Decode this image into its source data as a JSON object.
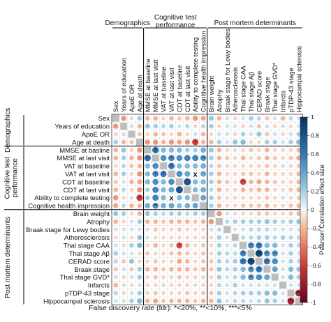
{
  "chart_data": {
    "type": "heatmap",
    "variables": [
      "Sex",
      "Years of education",
      "ApoE OR",
      "Age at death",
      "MMSE at basline",
      "MMSE at last visit",
      "VAT at baseline",
      "VAT at last visit",
      "CDT at baseline",
      "CDT at last visit",
      "Ability to complete testing",
      "Cognitive health impression",
      "Brain weight",
      "Atrophy",
      "Braak stage for Lewy bodies",
      "Atherosclerosis",
      "Thal stage CAA",
      "Thal stage Aβ",
      "CERAD score",
      "Braak stage",
      "Thal stage GVD*",
      "Infarcts",
      "pTDP-43 stage",
      "Hippocampal sclerosis"
    ],
    "column_labels": [
      "Sex",
      "Years of education",
      "ApoE OR",
      "Age at death",
      "MMSE at baseline",
      "MMSE at last visit",
      "VAT at baseline",
      "VAT at last visit",
      "CDT at baseline",
      "CDT at last visit",
      "Ability to complete testing",
      "Cognitive health impression",
      "Brain weight",
      "Atrophy",
      "Braak stage for Lewy bodies",
      "Atherosclerosis",
      "Thal stage CAA",
      "Thal stage Aβ",
      "CERAD score",
      "Braak stage",
      "Thal stage GVD*",
      "Infarcts",
      "pTDP-43 stage",
      "Hippocampal sclerosis"
    ],
    "groups": [
      {
        "name": "Demographics",
        "col_header": "Demographics",
        "start": 0,
        "end": 3
      },
      {
        "name": "Cognitive test performance",
        "col_header_lines": [
          "Cognitive test",
          "performance"
        ],
        "row_header_lines": [
          "Cognitive test",
          "performance"
        ],
        "start": 4,
        "end": 11
      },
      {
        "name": "Post mortem determinants",
        "col_header": "Post mortem determinants",
        "start": 12,
        "end": 23
      }
    ],
    "cells": [
      [
        0,
        1,
        -0.3
      ],
      [
        0,
        2,
        -0.1
      ],
      [
        0,
        3,
        0.2
      ],
      [
        0,
        4,
        -0.2
      ],
      [
        0,
        5,
        -0.2
      ],
      [
        0,
        6,
        -0.1
      ],
      [
        0,
        7,
        -0.2
      ],
      [
        0,
        8,
        -0.15
      ],
      [
        0,
        9,
        -0.2
      ],
      [
        0,
        10,
        -0.3
      ],
      [
        0,
        11,
        -0.25
      ],
      [
        0,
        12,
        0.25
      ],
      [
        0,
        13,
        -0.2
      ],
      [
        0,
        14,
        0.1
      ],
      [
        0,
        15,
        -0.1
      ],
      [
        0,
        16,
        0.1
      ],
      [
        0,
        17,
        0.2
      ],
      [
        0,
        18,
        0.15
      ],
      [
        0,
        19,
        -0.15
      ],
      [
        0,
        20,
        0.1
      ],
      [
        0,
        21,
        -0.2
      ],
      [
        0,
        22,
        0.15
      ],
      [
        0,
        23,
        0.1
      ],
      [
        1,
        2,
        0.1
      ],
      [
        1,
        3,
        -0.2
      ],
      [
        1,
        4,
        0.25
      ],
      [
        1,
        5,
        0.2
      ],
      [
        1,
        6,
        0.15
      ],
      [
        1,
        7,
        0.2
      ],
      [
        1,
        8,
        0.1
      ],
      [
        1,
        9,
        0.15
      ],
      [
        1,
        10,
        -0.1
      ],
      [
        1,
        11,
        0.15
      ],
      [
        1,
        12,
        0.2
      ],
      [
        1,
        13,
        -0.1
      ],
      [
        1,
        14,
        0.1
      ],
      [
        1,
        15,
        0.1
      ],
      [
        1,
        16,
        -0.1
      ],
      [
        1,
        17,
        0.1
      ],
      [
        1,
        18,
        -0.15
      ],
      [
        1,
        19,
        0.1
      ],
      [
        1,
        20,
        -0.1
      ],
      [
        1,
        21,
        0.1
      ],
      [
        1,
        22,
        -0.1
      ],
      [
        1,
        23,
        0.1
      ],
      [
        2,
        3,
        -0.15
      ],
      [
        2,
        4,
        -0.1
      ],
      [
        2,
        5,
        -0.2
      ],
      [
        2,
        6,
        -0.15
      ],
      [
        2,
        7,
        -0.1
      ],
      [
        2,
        8,
        -0.2
      ],
      [
        2,
        9,
        -0.1
      ],
      [
        2,
        10,
        0.1
      ],
      [
        2,
        11,
        -0.2
      ],
      [
        2,
        12,
        -0.1
      ],
      [
        2,
        13,
        0.1
      ],
      [
        2,
        14,
        0.1
      ],
      [
        2,
        15,
        -0.1
      ],
      [
        2,
        16,
        0.2
      ],
      [
        2,
        17,
        0.1
      ],
      [
        2,
        18,
        0.25
      ],
      [
        2,
        19,
        -0.15
      ],
      [
        2,
        20,
        0.1
      ],
      [
        2,
        21,
        -0.1
      ],
      [
        2,
        22,
        0.1
      ],
      [
        2,
        23,
        0.2
      ],
      [
        3,
        4,
        -0.3
      ],
      [
        3,
        5,
        -0.3
      ],
      [
        3,
        6,
        -0.2
      ],
      [
        3,
        7,
        -0.3
      ],
      [
        3,
        8,
        -0.25
      ],
      [
        3,
        9,
        -0.3
      ],
      [
        3,
        10,
        -0.6,
        "*"
      ],
      [
        3,
        11,
        -0.2
      ],
      [
        3,
        12,
        -0.2
      ],
      [
        3,
        13,
        0.2
      ],
      [
        3,
        14,
        0.1
      ],
      [
        3,
        15,
        0.25
      ],
      [
        3,
        16,
        0.3
      ],
      [
        3,
        17,
        -0.1
      ],
      [
        3,
        18,
        -0.1
      ],
      [
        3,
        19,
        0.2
      ],
      [
        3,
        20,
        0.2
      ],
      [
        3,
        21,
        0.1
      ],
      [
        3,
        22,
        0.2
      ],
      [
        3,
        23,
        0.3
      ],
      [
        4,
        5,
        0.65,
        "*"
      ],
      [
        4,
        6,
        0.3
      ],
      [
        4,
        7,
        0.3
      ],
      [
        4,
        8,
        0.3
      ],
      [
        4,
        9,
        0.2
      ],
      [
        4,
        10,
        0.2
      ],
      [
        4,
        11,
        0.35
      ],
      [
        4,
        12,
        0.25
      ],
      [
        4,
        13,
        -0.2
      ],
      [
        4,
        14,
        -0.1
      ],
      [
        4,
        15,
        0.1
      ],
      [
        4,
        16,
        -0.1
      ],
      [
        4,
        17,
        -0.15
      ],
      [
        4,
        18,
        -0.1
      ],
      [
        4,
        19,
        -0.2
      ],
      [
        4,
        20,
        -0.1
      ],
      [
        4,
        21,
        -0.1
      ],
      [
        4,
        22,
        -0.1
      ],
      [
        4,
        23,
        -0.2
      ],
      [
        5,
        6,
        0.5
      ],
      [
        5,
        7,
        0.55,
        "*"
      ],
      [
        5,
        8,
        0.5
      ],
      [
        5,
        9,
        0.55
      ],
      [
        5,
        10,
        0.55
      ],
      [
        5,
        11,
        0.5,
        "**"
      ],
      [
        5,
        12,
        0.2
      ],
      [
        5,
        13,
        -0.2
      ],
      [
        5,
        14,
        -0.15
      ],
      [
        5,
        15,
        -0.1
      ],
      [
        5,
        16,
        -0.2
      ],
      [
        5,
        17,
        -0.1
      ],
      [
        5,
        18,
        -0.15
      ],
      [
        5,
        19,
        -0.2
      ],
      [
        5,
        20,
        -0.15
      ],
      [
        5,
        21,
        -0.1
      ],
      [
        5,
        22,
        -0.15
      ],
      [
        5,
        23,
        -0.25
      ],
      [
        6,
        7,
        0.6,
        "*"
      ],
      [
        6,
        8,
        0.3
      ],
      [
        6,
        9,
        0.3
      ],
      [
        6,
        10,
        0.3
      ],
      [
        6,
        11,
        0.35
      ],
      [
        6,
        12,
        0.15
      ],
      [
        6,
        13,
        -0.15
      ],
      [
        6,
        14,
        -0.1
      ],
      [
        6,
        15,
        -0.1
      ],
      [
        6,
        16,
        -0.1
      ],
      [
        6,
        17,
        -0.1
      ],
      [
        6,
        18,
        -0.1
      ],
      [
        6,
        19,
        -0.15
      ],
      [
        6,
        20,
        -0.1
      ],
      [
        6,
        21,
        0.1
      ],
      [
        6,
        22,
        -0.1
      ],
      [
        6,
        23,
        -0.15
      ],
      [
        7,
        8,
        0.5
      ],
      [
        7,
        9,
        0.4
      ],
      [
        7,
        10,
        "x"
      ],
      [
        7,
        11,
        0.4
      ],
      [
        7,
        12,
        0.2
      ],
      [
        7,
        13,
        -0.2
      ],
      [
        7,
        14,
        -0.1
      ],
      [
        7,
        15,
        -0.1
      ],
      [
        7,
        16,
        -0.15
      ],
      [
        7,
        17,
        -0.15
      ],
      [
        7,
        18,
        -0.1
      ],
      [
        7,
        19,
        -0.2
      ],
      [
        7,
        20,
        -0.1
      ],
      [
        7,
        21,
        -0.1
      ],
      [
        7,
        22,
        -0.1
      ],
      [
        7,
        23,
        -0.2
      ],
      [
        8,
        9,
        0.8
      ],
      [
        8,
        10,
        0.3
      ],
      [
        8,
        11,
        0.3
      ],
      [
        8,
        12,
        0.2
      ],
      [
        8,
        13,
        -0.2
      ],
      [
        8,
        14,
        -0.15
      ],
      [
        8,
        15,
        -0.1
      ],
      [
        8,
        16,
        -0.55,
        "*"
      ],
      [
        8,
        17,
        -0.2
      ],
      [
        8,
        18,
        -0.25
      ],
      [
        8,
        19,
        -0.2
      ],
      [
        8,
        20,
        -0.15
      ],
      [
        8,
        21,
        -0.1
      ],
      [
        8,
        22,
        -0.1
      ],
      [
        8,
        23,
        -0.2
      ],
      [
        9,
        10,
        0.3
      ],
      [
        9,
        11,
        0.35
      ],
      [
        9,
        12,
        0.15
      ],
      [
        9,
        13,
        -0.2
      ],
      [
        9,
        14,
        -0.1
      ],
      [
        9,
        15,
        -0.1
      ],
      [
        9,
        16,
        -0.2
      ],
      [
        9,
        17,
        -0.15
      ],
      [
        9,
        18,
        -0.2
      ],
      [
        9,
        19,
        -0.2
      ],
      [
        9,
        20,
        -0.1
      ],
      [
        9,
        21,
        -0.1
      ],
      [
        9,
        22,
        -0.15
      ],
      [
        9,
        23,
        -0.2
      ],
      [
        10,
        11,
        0.4
      ],
      [
        10,
        12,
        0.2
      ],
      [
        10,
        13,
        -0.15
      ],
      [
        10,
        14,
        -0.1
      ],
      [
        10,
        15,
        -0.1
      ],
      [
        10,
        16,
        -0.1
      ],
      [
        10,
        17,
        -0.1
      ],
      [
        10,
        18,
        -0.1
      ],
      [
        10,
        19,
        -0.15
      ],
      [
        10,
        20,
        -0.1
      ],
      [
        10,
        21,
        0.1
      ],
      [
        10,
        22,
        -0.1
      ],
      [
        10,
        23,
        -0.15
      ],
      [
        11,
        12,
        0.2
      ],
      [
        11,
        13,
        -0.2
      ],
      [
        11,
        14,
        -0.1
      ],
      [
        11,
        15,
        -0.1
      ],
      [
        11,
        16,
        -0.15
      ],
      [
        11,
        17,
        -0.15
      ],
      [
        11,
        18,
        -0.15
      ],
      [
        11,
        19,
        -0.2
      ],
      [
        11,
        20,
        -0.1
      ],
      [
        11,
        21,
        -0.1
      ],
      [
        11,
        22,
        -0.15
      ],
      [
        11,
        23,
        -0.2
      ],
      [
        12,
        13,
        -0.3
      ],
      [
        12,
        14,
        0.1
      ],
      [
        12,
        15,
        -0.1
      ],
      [
        12,
        16,
        -0.1
      ],
      [
        12,
        17,
        -0.1
      ],
      [
        12,
        18,
        -0.15
      ],
      [
        12,
        19,
        -0.15
      ],
      [
        12,
        20,
        -0.1
      ],
      [
        12,
        21,
        -0.1
      ],
      [
        12,
        22,
        -0.15
      ],
      [
        12,
        23,
        -0.2
      ],
      [
        13,
        14,
        0.15
      ],
      [
        13,
        15,
        0.2
      ],
      [
        13,
        16,
        0.2
      ],
      [
        13,
        17,
        0.2
      ],
      [
        13,
        18,
        0.2
      ],
      [
        13,
        19,
        0.25
      ],
      [
        13,
        20,
        0.2
      ],
      [
        13,
        21,
        0.15
      ],
      [
        13,
        22,
        0.2
      ],
      [
        13,
        23,
        0.25
      ],
      [
        14,
        15,
        0.1
      ],
      [
        14,
        16,
        0.1
      ],
      [
        14,
        17,
        0.15
      ],
      [
        14,
        18,
        0.15
      ],
      [
        14,
        19,
        0.15
      ],
      [
        14,
        20,
        0.1
      ],
      [
        14,
        21,
        0.1
      ],
      [
        14,
        22,
        0.1
      ],
      [
        14,
        23,
        0.1
      ],
      [
        15,
        16,
        0.15
      ],
      [
        15,
        17,
        0.15
      ],
      [
        15,
        18,
        0.2
      ],
      [
        15,
        19,
        0.2
      ],
      [
        15,
        20,
        0.15
      ],
      [
        15,
        21,
        0.2
      ],
      [
        15,
        22,
        0.15
      ],
      [
        15,
        23,
        0.15
      ],
      [
        16,
        17,
        0.55,
        "*"
      ],
      [
        16,
        18,
        0.6,
        "*"
      ],
      [
        16,
        19,
        0.3
      ],
      [
        16,
        20,
        0.3
      ],
      [
        16,
        21,
        0.1
      ],
      [
        16,
        22,
        0.2
      ],
      [
        16,
        23,
        0.15
      ],
      [
        17,
        18,
        0.85,
        "***"
      ],
      [
        17,
        19,
        0.5,
        "*"
      ],
      [
        17,
        20,
        0.5,
        "*"
      ],
      [
        17,
        21,
        0.1
      ],
      [
        17,
        22,
        0.2
      ],
      [
        17,
        23,
        0.1
      ],
      [
        18,
        19,
        0.6,
        "*"
      ],
      [
        18,
        20,
        0.5
      ],
      [
        18,
        21,
        0.1
      ],
      [
        18,
        22,
        0.2
      ],
      [
        18,
        23,
        0.15
      ],
      [
        19,
        20,
        0.4
      ],
      [
        19,
        21,
        0.1
      ],
      [
        19,
        22,
        0.3
      ],
      [
        19,
        23,
        0.25
      ],
      [
        20,
        21,
        0.1
      ],
      [
        20,
        22,
        0.3
      ],
      [
        20,
        23,
        0.2
      ],
      [
        21,
        22,
        0.1
      ],
      [
        21,
        23,
        0.1
      ],
      [
        22,
        23,
        -0.75,
        "***"
      ]
    ],
    "colorbar": {
      "label": "Pearson Correlation effect size",
      "min": -1,
      "max": 1,
      "ticks": [
        1,
        0.8,
        0.6,
        0.4,
        0.2,
        0,
        -0.2,
        -0.4,
        -0.6,
        -0.8,
        -1
      ]
    },
    "footnote": "False discovery rate (fdr): *<20%, **<10%, ***<5%"
  }
}
